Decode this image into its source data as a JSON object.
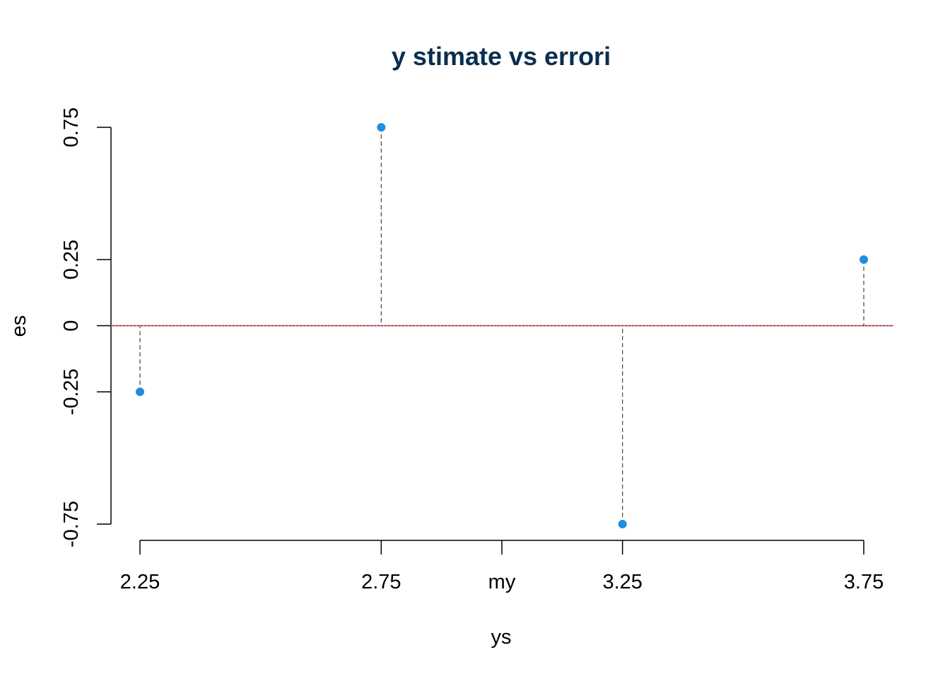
{
  "chart_data": {
    "type": "scatter",
    "title": "y stimate vs errori",
    "xlabel": "ys",
    "ylabel": "es",
    "x": [
      2.25,
      2.75,
      3.25,
      3.75
    ],
    "y": [
      -0.25,
      0.75,
      -0.75,
      0.25
    ],
    "xlim": [
      2.2,
      3.81
    ],
    "ylim": [
      -0.75,
      0.75
    ],
    "x_ticks": [
      2.25,
      2.75,
      3.0,
      3.25,
      3.75
    ],
    "x_tick_labels": [
      "2.25",
      "2.75",
      "my",
      "3.25",
      "3.75"
    ],
    "y_ticks": [
      -0.75,
      -0.25,
      0,
      0.25,
      0.75
    ],
    "y_tick_labels": [
      "-0.75",
      "-0.25",
      "0",
      "0.25",
      "0.75"
    ],
    "reference_line": 0,
    "drop_lines": "dashed vertical lines from each point to zero",
    "grid": false,
    "colors": {
      "title": "#0b2e4f",
      "points": "#1f8ee0",
      "reference_line": "#8b1a1a",
      "drop_lines": "#444444",
      "axes": "#000000"
    }
  }
}
